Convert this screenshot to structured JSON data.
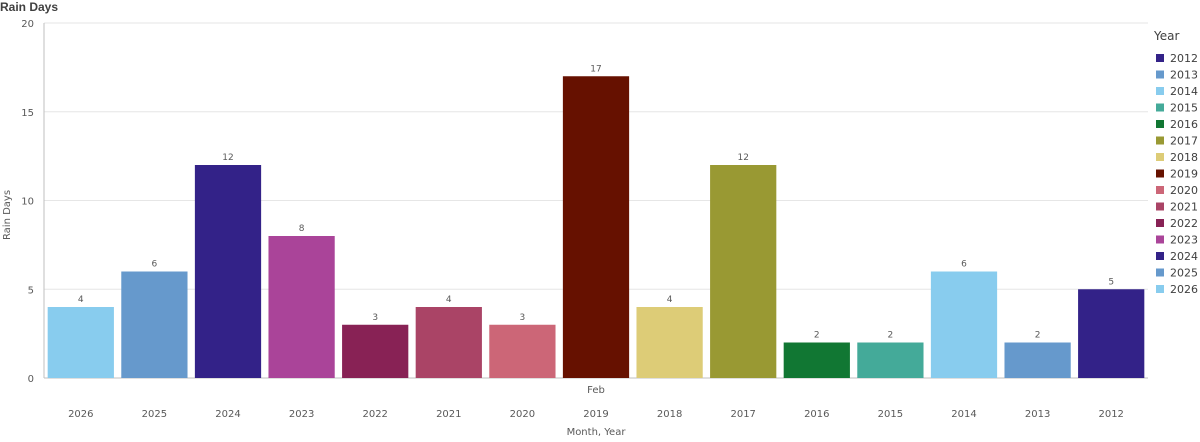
{
  "chart_data": {
    "type": "bar",
    "title": "Rain Days",
    "ylabel": "Rain Days",
    "xlabel": "Month, Year",
    "group_label": "Feb",
    "ylim": [
      0,
      20
    ],
    "yticks": [
      0,
      5,
      10,
      15,
      20
    ],
    "grid": true,
    "legend_position": "right",
    "categories": [
      "2026",
      "2025",
      "2024",
      "2023",
      "2022",
      "2021",
      "2020",
      "2019",
      "2018",
      "2017",
      "2016",
      "2015",
      "2014",
      "2013",
      "2012"
    ],
    "values": [
      4,
      6,
      12,
      8,
      3,
      4,
      3,
      17,
      4,
      12,
      2,
      2,
      6,
      2,
      5
    ],
    "legend": {
      "title": "Year",
      "items": [
        {
          "name": "2012",
          "color": "#332288"
        },
        {
          "name": "2013",
          "color": "#6699cc"
        },
        {
          "name": "2014",
          "color": "#88ccee"
        },
        {
          "name": "2015",
          "color": "#44aa99"
        },
        {
          "name": "2016",
          "color": "#117733"
        },
        {
          "name": "2017",
          "color": "#999933"
        },
        {
          "name": "2018",
          "color": "#ddcc77"
        },
        {
          "name": "2019",
          "color": "#661100"
        },
        {
          "name": "2020",
          "color": "#cc6677"
        },
        {
          "name": "2021",
          "color": "#aa4466"
        },
        {
          "name": "2022",
          "color": "#882255"
        },
        {
          "name": "2023",
          "color": "#aa4499"
        },
        {
          "name": "2024",
          "color": "#332288"
        },
        {
          "name": "2025",
          "color": "#6699cc"
        },
        {
          "name": "2026",
          "color": "#88ccee"
        }
      ]
    }
  }
}
